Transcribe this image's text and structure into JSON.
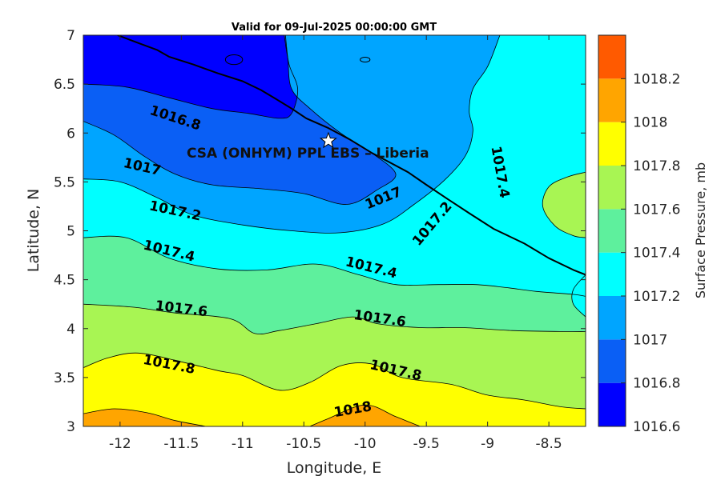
{
  "chart_data": {
    "type": "filled-contour",
    "title": "Valid for 09-Jul-2025 00:00:00 GMT",
    "xlabel": "Longitude, E",
    "ylabel": "Latitude, N",
    "xlim": [
      -12.3,
      -8.2
    ],
    "ylim": [
      3,
      7
    ],
    "xticks": [
      -12,
      -11.5,
      -11,
      -10.5,
      -10,
      -9.5,
      -9,
      -8.5
    ],
    "xtick_labels": [
      "-12",
      "-11.5",
      "-11",
      "-10.5",
      "-10",
      "-9.5",
      "-9",
      "-8.5"
    ],
    "yticks": [
      3,
      3.5,
      4,
      4.5,
      5,
      5.5,
      6,
      6.5,
      7
    ],
    "ytick_labels": [
      "3",
      "3.5",
      "4",
      "4.5",
      "5",
      "5.5",
      "6",
      "6.5",
      "7"
    ],
    "colorbar": {
      "label": "Surface Pressure, mb",
      "levels": [
        1016.6,
        1016.8,
        1017,
        1017.2,
        1017.4,
        1017.6,
        1017.8,
        1018,
        1018.2
      ],
      "level_labels": [
        "1016.6",
        "1016.8",
        "1017",
        "1017.2",
        "1017.4",
        "1017.6",
        "1017.8",
        "1018",
        "1018.2"
      ],
      "colors": [
        "#0000ff",
        "#0a5ff5",
        "#00a5ff",
        "#00ffff",
        "#5ef09d",
        "#a8f553",
        "#ffff00",
        "#ffa500",
        "#ff5a00"
      ]
    },
    "contour_labels": [
      {
        "text": "1016.8",
        "lon": -11.55,
        "lat": 6.15
      },
      {
        "text": "1017",
        "lon": -11.82,
        "lat": 5.65
      },
      {
        "text": "1017",
        "lon": -9.85,
        "lat": 5.33
      },
      {
        "text": "1017.2",
        "lon": -11.55,
        "lat": 5.2
      },
      {
        "text": "1017.2",
        "lon": -9.45,
        "lat": 5.07
      },
      {
        "text": "1017.4",
        "lon": -8.9,
        "lat": 5.6
      },
      {
        "text": "1017.4",
        "lon": -11.6,
        "lat": 4.79
      },
      {
        "text": "1017.4",
        "lon": -9.95,
        "lat": 4.62
      },
      {
        "text": "1017.6",
        "lon": -11.5,
        "lat": 4.2
      },
      {
        "text": "1017.6",
        "lon": -9.88,
        "lat": 4.1
      },
      {
        "text": "1017.8",
        "lon": -11.6,
        "lat": 3.63
      },
      {
        "text": "1017.8",
        "lon": -9.75,
        "lat": 3.57
      },
      {
        "text": "1018",
        "lon": -10.1,
        "lat": 3.17
      }
    ],
    "station": {
      "name": "CSA (ONHYM) PPL EBS  – Liberia",
      "lon": -10.3,
      "lat": 5.92
    },
    "coastline": [
      [
        -12.02,
        7.0
      ],
      [
        -11.85,
        6.92
      ],
      [
        -11.7,
        6.85
      ],
      [
        -11.6,
        6.78
      ],
      [
        -11.4,
        6.7
      ],
      [
        -11.2,
        6.61
      ],
      [
        -11.0,
        6.53
      ],
      [
        -10.85,
        6.44
      ],
      [
        -10.73,
        6.35
      ],
      [
        -10.6,
        6.25
      ],
      [
        -10.48,
        6.15
      ],
      [
        -10.3,
        6.05
      ],
      [
        -10.12,
        5.93
      ],
      [
        -9.95,
        5.8
      ],
      [
        -9.8,
        5.7
      ],
      [
        -9.65,
        5.6
      ],
      [
        -9.5,
        5.47
      ],
      [
        -9.32,
        5.32
      ],
      [
        -9.15,
        5.18
      ],
      [
        -8.95,
        5.02
      ],
      [
        -8.7,
        4.87
      ],
      [
        -8.5,
        4.72
      ],
      [
        -8.3,
        4.6
      ],
      [
        -8.2,
        4.55
      ]
    ],
    "fill_boundaries": [
      {
        "upper": 1017.0,
        "color": "#0a5ff5",
        "points": [
          [
            -12.3,
            6.5
          ],
          [
            -11.95,
            6.47
          ],
          [
            -11.6,
            6.36
          ],
          [
            -11.25,
            6.25
          ],
          [
            -10.95,
            6.2
          ],
          [
            -10.7,
            6.15
          ],
          [
            -10.6,
            6.2
          ],
          [
            -10.55,
            6.45
          ],
          [
            -10.62,
            6.7
          ],
          [
            -10.66,
            7.0
          ]
        ]
      },
      {
        "upper": 1017.2,
        "color": "#00a5ff",
        "points": [
          [
            -12.3,
            6.12
          ],
          [
            -12.05,
            5.98
          ],
          [
            -11.8,
            5.76
          ],
          [
            -11.55,
            5.58
          ],
          [
            -11.25,
            5.47
          ],
          [
            -10.85,
            5.43
          ],
          [
            -10.5,
            5.38
          ],
          [
            -10.15,
            5.27
          ],
          [
            -9.9,
            5.42
          ],
          [
            -9.75,
            5.58
          ],
          [
            -9.95,
            5.8
          ],
          [
            -10.2,
            6.0
          ],
          [
            -10.45,
            6.25
          ],
          [
            -10.6,
            6.45
          ],
          [
            -10.63,
            6.75
          ],
          [
            -10.65,
            7.0
          ]
        ]
      },
      {
        "upper": 1017.4,
        "color": "#00ffff",
        "points": [
          [
            -12.3,
            5.53
          ],
          [
            -12.0,
            5.5
          ],
          [
            -11.7,
            5.34
          ],
          [
            -11.4,
            5.16
          ],
          [
            -11.0,
            5.06
          ],
          [
            -10.6,
            5.0
          ],
          [
            -10.2,
            4.98
          ],
          [
            -9.85,
            5.07
          ],
          [
            -9.6,
            5.27
          ],
          [
            -9.35,
            5.52
          ],
          [
            -9.18,
            5.77
          ],
          [
            -9.12,
            6.02
          ],
          [
            -9.15,
            6.22
          ],
          [
            -9.12,
            6.45
          ],
          [
            -9.0,
            6.68
          ],
          [
            -8.9,
            7.0
          ]
        ]
      },
      {
        "upper": 1017.6,
        "color": "#5ef09d",
        "points": [
          [
            -12.3,
            4.93
          ],
          [
            -11.95,
            4.93
          ],
          [
            -11.6,
            4.72
          ],
          [
            -11.2,
            4.61
          ],
          [
            -10.8,
            4.6
          ],
          [
            -10.4,
            4.66
          ],
          [
            -10.05,
            4.55
          ],
          [
            -9.75,
            4.45
          ],
          [
            -9.4,
            4.45
          ],
          [
            -9.1,
            4.45
          ],
          [
            -8.85,
            4.42
          ],
          [
            -8.6,
            4.38
          ],
          [
            -8.3,
            4.35
          ],
          [
            -8.2,
            4.33
          ]
        ]
      },
      {
        "upper": 1017.8,
        "color": "#a8f553",
        "points": [
          [
            -12.3,
            4.25
          ],
          [
            -11.9,
            4.22
          ],
          [
            -11.55,
            4.16
          ],
          [
            -11.1,
            4.1
          ],
          [
            -10.9,
            3.95
          ],
          [
            -10.7,
            3.98
          ],
          [
            -10.4,
            4.05
          ],
          [
            -10.1,
            4.12
          ],
          [
            -9.9,
            4.05
          ],
          [
            -9.55,
            4.01
          ],
          [
            -9.2,
            4.01
          ],
          [
            -8.8,
            3.98
          ],
          [
            -8.4,
            3.97
          ],
          [
            -8.2,
            3.97
          ]
        ]
      },
      {
        "upper": 1018.0,
        "color": "#ffff00",
        "points": [
          [
            -12.3,
            3.6
          ],
          [
            -12.1,
            3.7
          ],
          [
            -11.85,
            3.75
          ],
          [
            -11.5,
            3.66
          ],
          [
            -11.2,
            3.57
          ],
          [
            -11.0,
            3.52
          ],
          [
            -10.7,
            3.37
          ],
          [
            -10.45,
            3.45
          ],
          [
            -10.2,
            3.62
          ],
          [
            -9.95,
            3.64
          ],
          [
            -9.7,
            3.5
          ],
          [
            -9.3,
            3.43
          ],
          [
            -9.0,
            3.32
          ],
          [
            -8.7,
            3.27
          ],
          [
            -8.4,
            3.2
          ],
          [
            -8.2,
            3.18
          ]
        ]
      },
      {
        "upper": 1018.2,
        "color": "#ffa500",
        "points": [
          [
            -12.3,
            3.13
          ],
          [
            -12.05,
            3.18
          ],
          [
            -11.78,
            3.14
          ],
          [
            -11.55,
            3.06
          ],
          [
            -11.3,
            3.0
          ]
        ]
      },
      {
        "upper": 1018.2,
        "color": "#ffa500",
        "points": [
          [
            -10.45,
            3.0
          ],
          [
            -10.3,
            3.08
          ],
          [
            -10.0,
            3.22
          ],
          [
            -9.75,
            3.1
          ],
          [
            -9.55,
            3.0
          ]
        ]
      }
    ],
    "east_bands": [
      {
        "upper": 1017.6,
        "color": "#a8f553",
        "points": [
          [
            -8.2,
            5.6
          ],
          [
            -8.35,
            5.55
          ],
          [
            -8.5,
            5.45
          ],
          [
            -8.55,
            5.25
          ],
          [
            -8.45,
            5.05
          ],
          [
            -8.3,
            4.95
          ],
          [
            -8.2,
            4.93
          ]
        ]
      },
      {
        "upper": 1017.2,
        "color": "#00ffff",
        "points": [
          [
            -8.2,
            4.55
          ],
          [
            -8.3,
            4.4
          ],
          [
            -8.3,
            4.25
          ],
          [
            -8.2,
            4.12
          ]
        ]
      }
    ],
    "lake_blobs": [
      {
        "lon": -11.07,
        "lat": 6.75,
        "rx": 0.07,
        "ry": 0.05
      },
      {
        "lon": -10.0,
        "lat": 6.75,
        "rx": 0.04,
        "ry": 0.025
      }
    ]
  }
}
